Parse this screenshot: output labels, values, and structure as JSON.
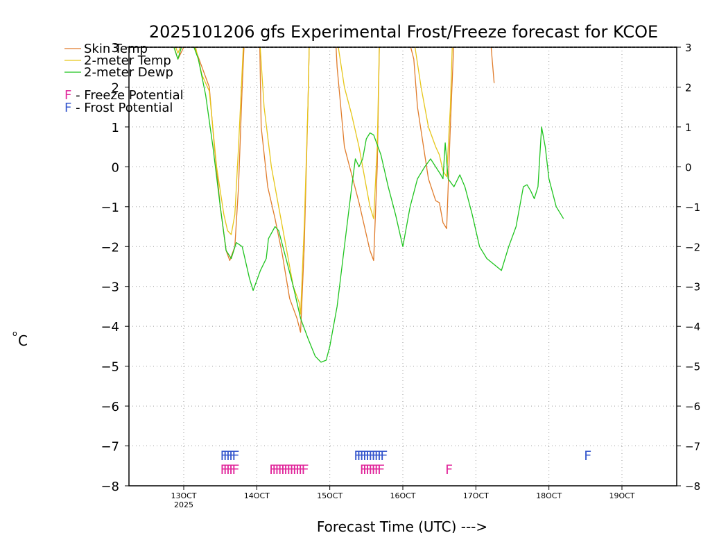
{
  "chart_data": {
    "type": "line",
    "title": "2025101206 gfs Experimental Frost/Freeze forecast for KCOE",
    "xlabel": "Forecast Time (UTC) --->",
    "ylabel": "°C",
    "ylabel_degree": "o",
    "ylabel_unit": "C",
    "ylim": [
      -8,
      3
    ],
    "xlim": [
      12.25,
      19.75
    ],
    "yticks": [
      -8,
      -7,
      -6,
      -5,
      -4,
      -3,
      -2,
      -1,
      0,
      1,
      2,
      3
    ],
    "ytick_labels": [
      "−8",
      "−7",
      "−6",
      "−5",
      "−4",
      "−3",
      "−2",
      "−1",
      "0",
      "1",
      "2",
      "3"
    ],
    "xticks": [
      {
        "x": 13,
        "label": "13OCT",
        "sub": "2025"
      },
      {
        "x": 14,
        "label": "14OCT"
      },
      {
        "x": 15,
        "label": "15OCT"
      },
      {
        "x": 16,
        "label": "16OCT"
      },
      {
        "x": 17,
        "label": "17OCT"
      },
      {
        "x": 18,
        "label": "18OCT"
      },
      {
        "x": 19,
        "label": "19OCT"
      }
    ],
    "grid": true,
    "legend": [
      {
        "label": "Skin Temp",
        "color": "#e07b2a"
      },
      {
        "label": "2-meter Temp",
        "color": "#e6c619"
      },
      {
        "label": "2-meter Dewp",
        "color": "#1fc41f"
      }
    ],
    "potential_legend": [
      {
        "letter": "F",
        "text": " - Freeze Potential",
        "color": "#e0249a"
      },
      {
        "letter": "F",
        "text": " - Frost Potential",
        "color": "#3355cc"
      }
    ],
    "series": [
      {
        "name": "Skin Temp",
        "color": "#e07b2a",
        "segments": [
          [
            [
              12.83,
              3.2
            ],
            [
              12.92,
              2.7
            ],
            [
              13.0,
              3.0
            ],
            [
              13.08,
              3.2
            ]
          ],
          [
            [
              13.15,
              3.0
            ],
            [
              13.25,
              2.5
            ],
            [
              13.35,
              2.0
            ],
            [
              13.42,
              0.5
            ],
            [
              13.5,
              -1.0
            ],
            [
              13.58,
              -2.1
            ],
            [
              13.63,
              -2.35
            ],
            [
              13.7,
              -2.0
            ],
            [
              13.75,
              -0.5
            ],
            [
              13.8,
              2.0
            ],
            [
              13.83,
              3.2
            ]
          ],
          [
            [
              14.04,
              3.2
            ],
            [
              14.06,
              1.0
            ],
            [
              14.15,
              -0.5
            ],
            [
              14.25,
              -1.3
            ],
            [
              14.35,
              -2.2
            ],
            [
              14.45,
              -3.3
            ],
            [
              14.55,
              -3.8
            ],
            [
              14.6,
              -4.15
            ],
            [
              14.65,
              -2.0
            ],
            [
              14.7,
              1.5
            ],
            [
              14.72,
              3.2
            ]
          ],
          [
            [
              15.08,
              3.2
            ],
            [
              15.1,
              2.5
            ],
            [
              15.15,
              1.5
            ],
            [
              15.2,
              0.5
            ],
            [
              15.3,
              -0.2
            ],
            [
              15.4,
              -0.9
            ],
            [
              15.5,
              -1.7
            ],
            [
              15.55,
              -2.1
            ],
            [
              15.6,
              -2.35
            ],
            [
              15.65,
              0.0
            ],
            [
              15.68,
              3.2
            ]
          ],
          [
            [
              16.08,
              3.2
            ],
            [
              16.15,
              2.7
            ],
            [
              16.2,
              1.5
            ],
            [
              16.3,
              0.3
            ],
            [
              16.35,
              -0.3
            ],
            [
              16.45,
              -0.85
            ],
            [
              16.5,
              -0.9
            ],
            [
              16.55,
              -1.4
            ],
            [
              16.6,
              -1.55
            ],
            [
              16.65,
              1.0
            ],
            [
              16.7,
              3.2
            ]
          ],
          [
            [
              17.2,
              3.2
            ],
            [
              17.25,
              2.1
            ]
          ]
        ]
      },
      {
        "name": "2-meter Temp",
        "color": "#e6c619",
        "segments": [
          [
            [
              12.85,
              3.2
            ],
            [
              12.92,
              2.85
            ],
            [
              13.0,
              3.2
            ]
          ],
          [
            [
              13.15,
              3.1
            ],
            [
              13.25,
              2.3
            ],
            [
              13.35,
              1.9
            ],
            [
              13.45,
              0.0
            ],
            [
              13.55,
              -1.2
            ],
            [
              13.6,
              -1.6
            ],
            [
              13.65,
              -1.7
            ],
            [
              13.7,
              -1.2
            ],
            [
              13.75,
              0.5
            ],
            [
              13.82,
              3.2
            ]
          ],
          [
            [
              14.04,
              3.2
            ],
            [
              14.1,
              1.5
            ],
            [
              14.2,
              0.0
            ],
            [
              14.3,
              -1.0
            ],
            [
              14.4,
              -2.0
            ],
            [
              14.5,
              -3.0
            ],
            [
              14.58,
              -3.4
            ],
            [
              14.6,
              -3.7
            ],
            [
              14.65,
              -1.5
            ],
            [
              14.7,
              1.5
            ],
            [
              14.72,
              3.2
            ]
          ],
          [
            [
              15.1,
              3.2
            ],
            [
              15.2,
              2.0
            ],
            [
              15.3,
              1.3
            ],
            [
              15.4,
              0.5
            ],
            [
              15.5,
              -0.5
            ],
            [
              15.55,
              -1.0
            ],
            [
              15.6,
              -1.3
            ],
            [
              15.65,
              0.5
            ],
            [
              15.68,
              3.2
            ]
          ],
          [
            [
              16.15,
              3.2
            ],
            [
              16.25,
              2.0
            ],
            [
              16.35,
              1.0
            ],
            [
              16.45,
              0.5
            ],
            [
              16.5,
              0.3
            ],
            [
              16.55,
              -0.1
            ],
            [
              16.6,
              -0.25
            ],
            [
              16.65,
              1.5
            ],
            [
              16.68,
              3.2
            ]
          ]
        ]
      },
      {
        "name": "2-meter Dewp",
        "color": "#1fc41f",
        "segments": [
          [
            [
              12.83,
              3.2
            ],
            [
              12.92,
              2.7
            ],
            [
              13.0,
              3.2
            ]
          ],
          [
            [
              13.1,
              3.2
            ],
            [
              13.2,
              2.7
            ],
            [
              13.3,
              1.8
            ],
            [
              13.4,
              0.5
            ],
            [
              13.5,
              -1.0
            ],
            [
              13.58,
              -2.1
            ],
            [
              13.65,
              -2.3
            ],
            [
              13.72,
              -1.9
            ],
            [
              13.8,
              -2.0
            ],
            [
              13.9,
              -2.8
            ],
            [
              13.95,
              -3.1
            ],
            [
              14.05,
              -2.6
            ],
            [
              14.13,
              -2.3
            ],
            [
              14.16,
              -1.8
            ],
            [
              14.25,
              -1.5
            ],
            [
              14.3,
              -1.6
            ],
            [
              14.4,
              -2.3
            ],
            [
              14.5,
              -3.0
            ],
            [
              14.6,
              -3.8
            ],
            [
              14.7,
              -4.3
            ],
            [
              14.8,
              -4.75
            ],
            [
              14.88,
              -4.9
            ],
            [
              14.95,
              -4.85
            ],
            [
              15.0,
              -4.5
            ],
            [
              15.1,
              -3.5
            ],
            [
              15.2,
              -2.0
            ],
            [
              15.3,
              -0.5
            ],
            [
              15.35,
              0.2
            ],
            [
              15.4,
              0.0
            ],
            [
              15.45,
              0.2
            ],
            [
              15.5,
              0.7
            ],
            [
              15.55,
              0.85
            ],
            [
              15.6,
              0.8
            ],
            [
              15.7,
              0.3
            ],
            [
              15.8,
              -0.5
            ],
            [
              15.9,
              -1.2
            ],
            [
              16.0,
              -2.0
            ],
            [
              16.1,
              -1.0
            ],
            [
              16.2,
              -0.3
            ],
            [
              16.3,
              0.0
            ],
            [
              16.38,
              0.2
            ],
            [
              16.45,
              0.0
            ],
            [
              16.52,
              -0.2
            ],
            [
              16.55,
              -0.3
            ],
            [
              16.58,
              0.6
            ],
            [
              16.62,
              -0.3
            ],
            [
              16.7,
              -0.5
            ],
            [
              16.78,
              -0.2
            ],
            [
              16.85,
              -0.5
            ],
            [
              16.95,
              -1.2
            ],
            [
              17.05,
              -2.0
            ],
            [
              17.15,
              -2.3
            ],
            [
              17.25,
              -2.45
            ],
            [
              17.35,
              -2.6
            ],
            [
              17.45,
              -2.0
            ],
            [
              17.55,
              -1.5
            ],
            [
              17.65,
              -0.5
            ],
            [
              17.7,
              -0.45
            ],
            [
              17.75,
              -0.6
            ],
            [
              17.8,
              -0.8
            ],
            [
              17.85,
              -0.5
            ],
            [
              17.9,
              1.0
            ],
            [
              17.95,
              0.5
            ],
            [
              18.0,
              -0.3
            ],
            [
              18.1,
              -1.0
            ],
            [
              18.2,
              -1.3
            ]
          ]
        ]
      }
    ],
    "markers": [
      {
        "text": "F",
        "color": "#3355cc",
        "y": -7.2,
        "x": [
          13.5,
          13.54,
          13.58,
          13.62,
          13.66
        ]
      },
      {
        "text": "F",
        "color": "#e0249a",
        "y": -7.55,
        "x": [
          13.5,
          13.54,
          13.58,
          13.62,
          13.66
        ]
      },
      {
        "text": "F",
        "color": "#e0249a",
        "y": -7.55,
        "x": [
          14.17,
          14.21,
          14.25,
          14.29,
          14.33,
          14.37,
          14.41,
          14.45,
          14.49,
          14.53,
          14.57,
          14.61
        ]
      },
      {
        "text": "F",
        "color": "#3355cc",
        "y": -7.2,
        "x": [
          15.33,
          15.37,
          15.41,
          15.45,
          15.49,
          15.53,
          15.57,
          15.61,
          15.65,
          15.69
        ]
      },
      {
        "text": "F",
        "color": "#e0249a",
        "y": -7.55,
        "x": [
          15.41,
          15.45,
          15.49,
          15.53,
          15.57,
          15.61,
          15.65
        ]
      },
      {
        "text": "F",
        "color": "#e0249a",
        "y": -7.55,
        "x": [
          16.58
        ]
      },
      {
        "text": "F",
        "color": "#3355cc",
        "y": -7.2,
        "x": [
          18.48
        ]
      }
    ]
  }
}
